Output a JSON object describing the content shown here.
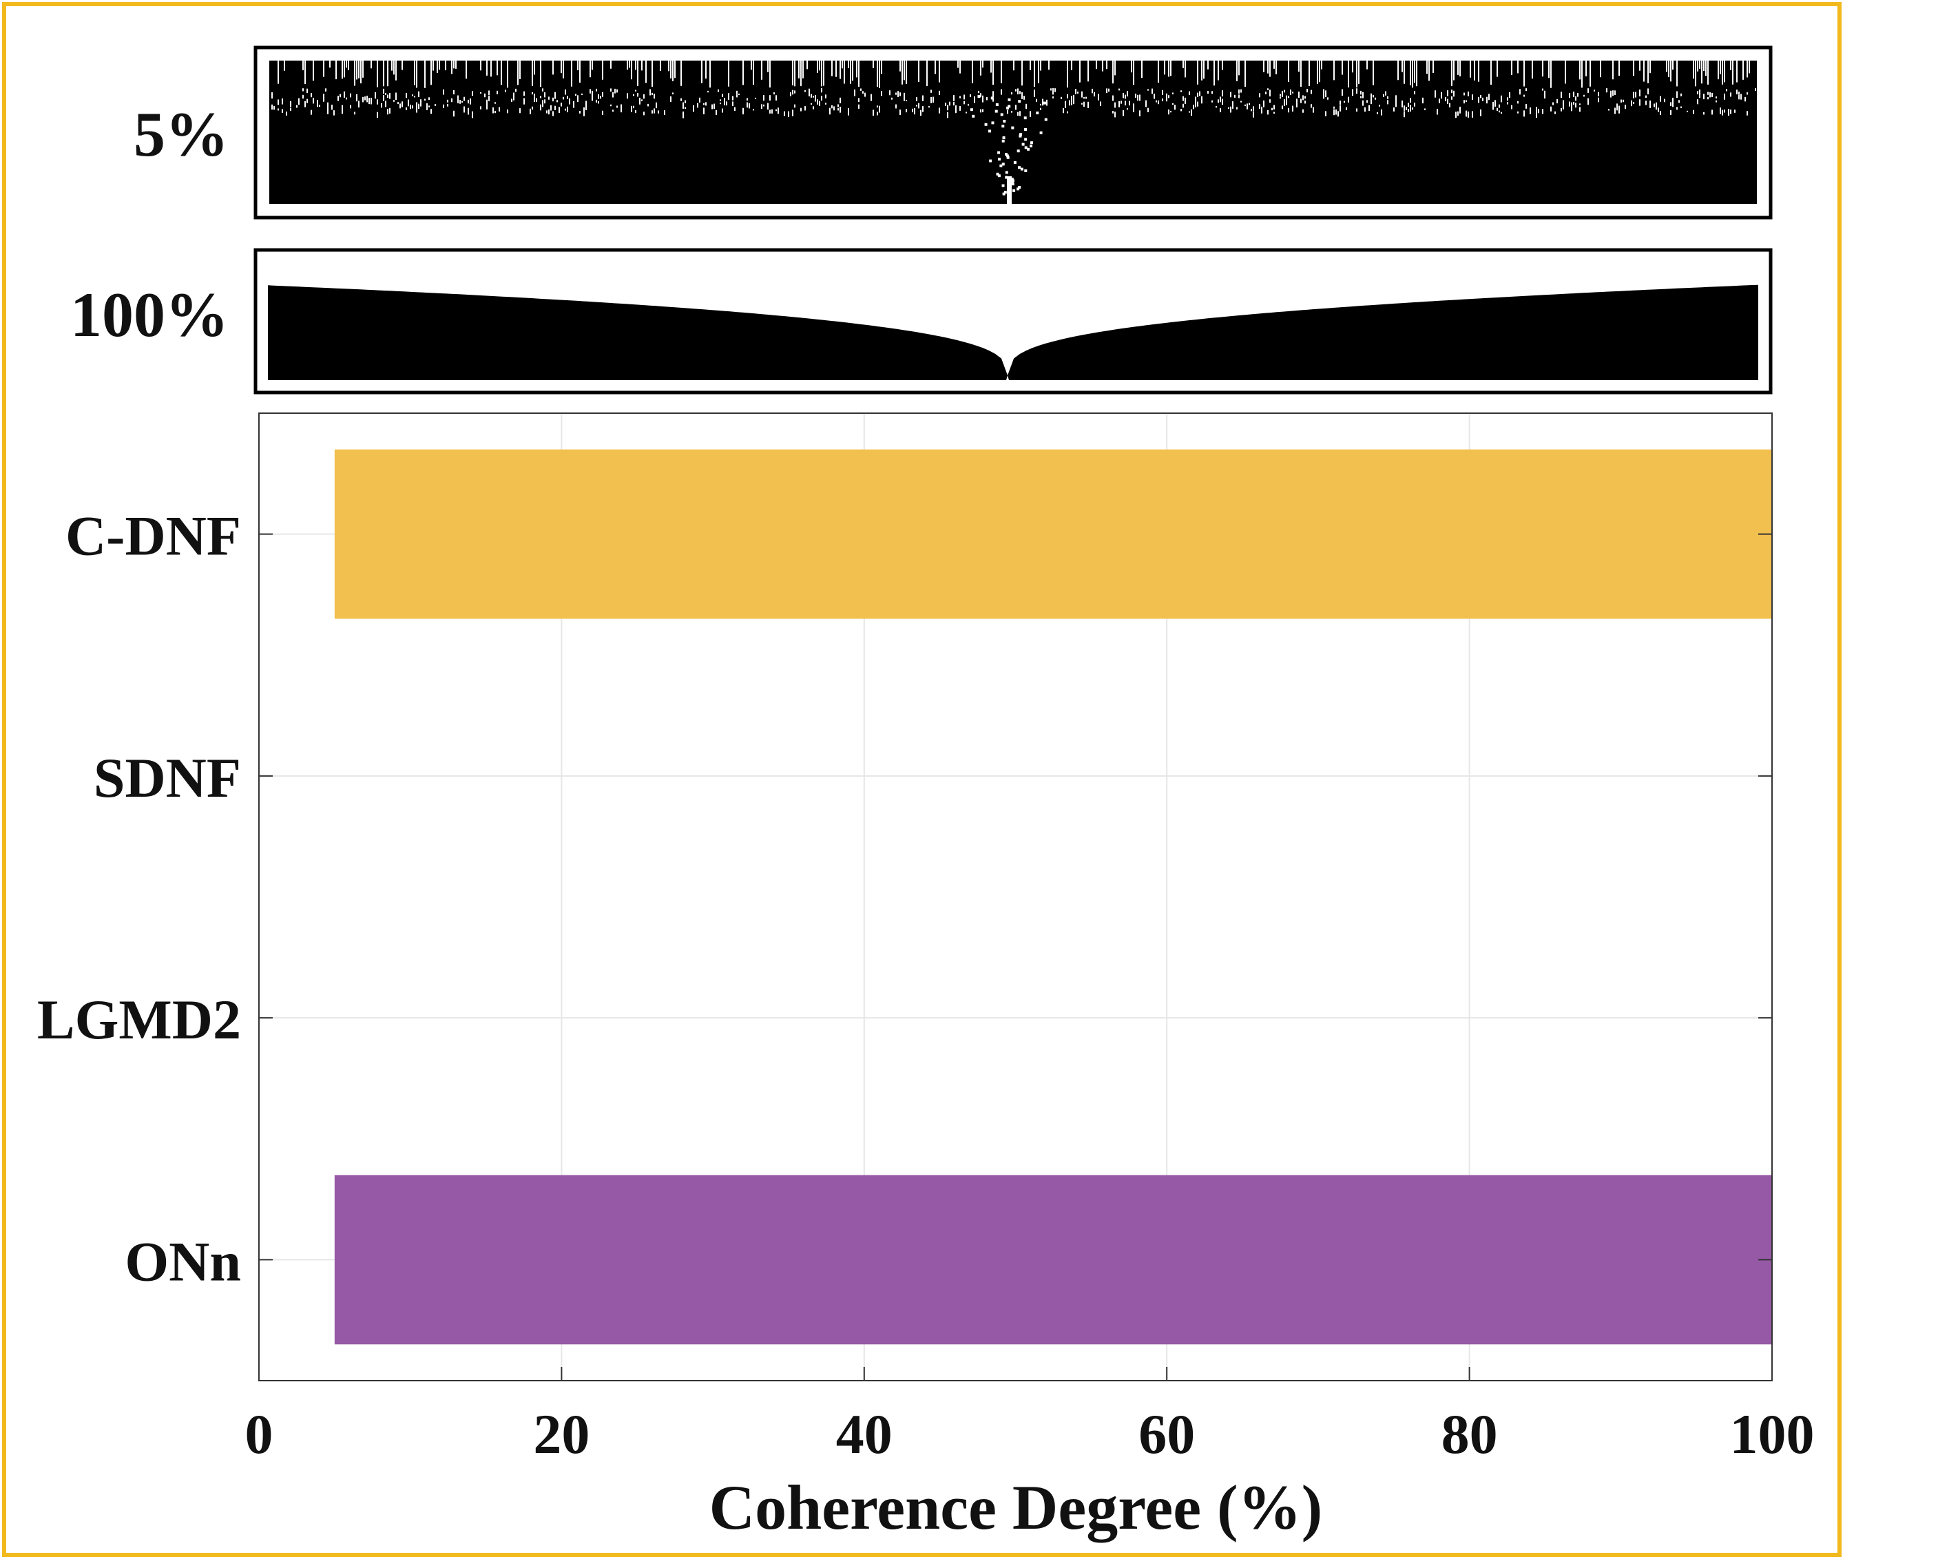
{
  "colors": {
    "frame": "#F2B91D",
    "cdnf": "#F2C04F",
    "onn": "#9659A6",
    "stimulus": "#000000",
    "grid": "#e6e6e6"
  },
  "stimuli": [
    {
      "label": "5%"
    },
    {
      "label": "100%"
    }
  ],
  "chart_data": {
    "type": "bar",
    "orientation": "horizontal",
    "categories": [
      "C-DNF",
      "SDNF",
      "LGMD2",
      "ONn"
    ],
    "bars": [
      {
        "category": "C-DNF",
        "start": 5,
        "end": 100,
        "color": "#F2C04F"
      },
      {
        "category": "SDNF",
        "start": 0,
        "end": 0,
        "color": "#F2C04F"
      },
      {
        "category": "LGMD2",
        "start": 0,
        "end": 0,
        "color": "#F2C04F"
      },
      {
        "category": "ONn",
        "start": 5,
        "end": 100,
        "color": "#9659A6"
      }
    ],
    "xlabel": "Coherence Degree (%)",
    "xlim": [
      0,
      100
    ],
    "xticks": [
      0,
      20,
      40,
      60,
      80,
      100
    ],
    "grid": true
  }
}
